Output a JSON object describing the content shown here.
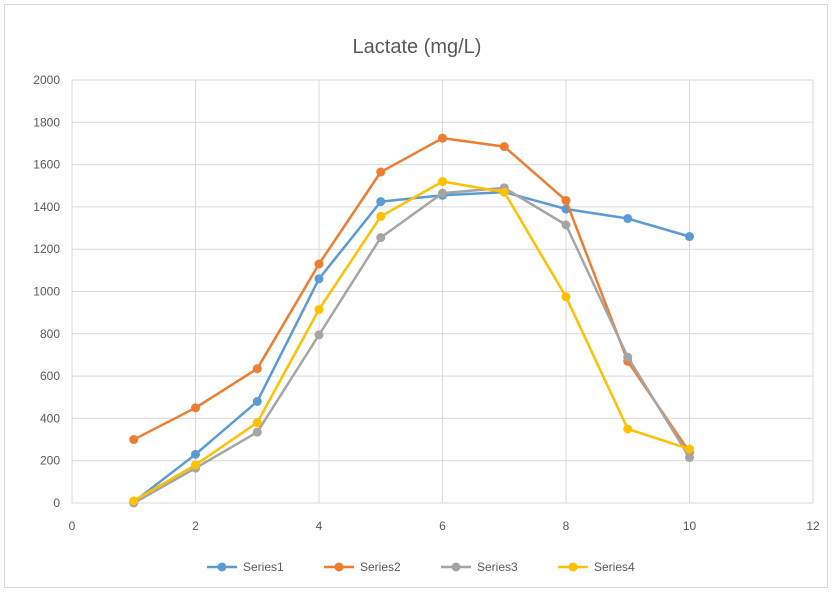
{
  "chart_data": {
    "type": "scatter",
    "title": "Lactate (mg/L)",
    "xlabel": "",
    "ylabel": "",
    "xlim": [
      0,
      12
    ],
    "ylim": [
      0,
      2000
    ],
    "x_ticks": [
      0,
      2,
      4,
      6,
      8,
      10,
      12
    ],
    "y_ticks": [
      0,
      200,
      400,
      600,
      800,
      1000,
      1200,
      1400,
      1600,
      1800,
      2000
    ],
    "grid": "horizontal-and-vertical",
    "legend_position": "bottom",
    "x": [
      1,
      2,
      3,
      4,
      5,
      6,
      7,
      8,
      9,
      10
    ],
    "series": [
      {
        "name": "Series1",
        "color": "#5b9bd5",
        "values": [
          5,
          230,
          480,
          1060,
          1425,
          1455,
          1470,
          1390,
          1345,
          1260
        ]
      },
      {
        "name": "Series2",
        "color": "#ed7d31",
        "values": [
          300,
          450,
          635,
          1130,
          1565,
          1725,
          1685,
          1430,
          670,
          240
        ]
      },
      {
        "name": "Series3",
        "color": "#a5a5a5",
        "values": [
          0,
          165,
          335,
          795,
          1255,
          1465,
          1490,
          1315,
          690,
          215
        ]
      },
      {
        "name": "Series4",
        "color": "#ffc000",
        "values": [
          10,
          180,
          380,
          915,
          1355,
          1520,
          1470,
          975,
          350,
          255
        ]
      }
    ]
  }
}
